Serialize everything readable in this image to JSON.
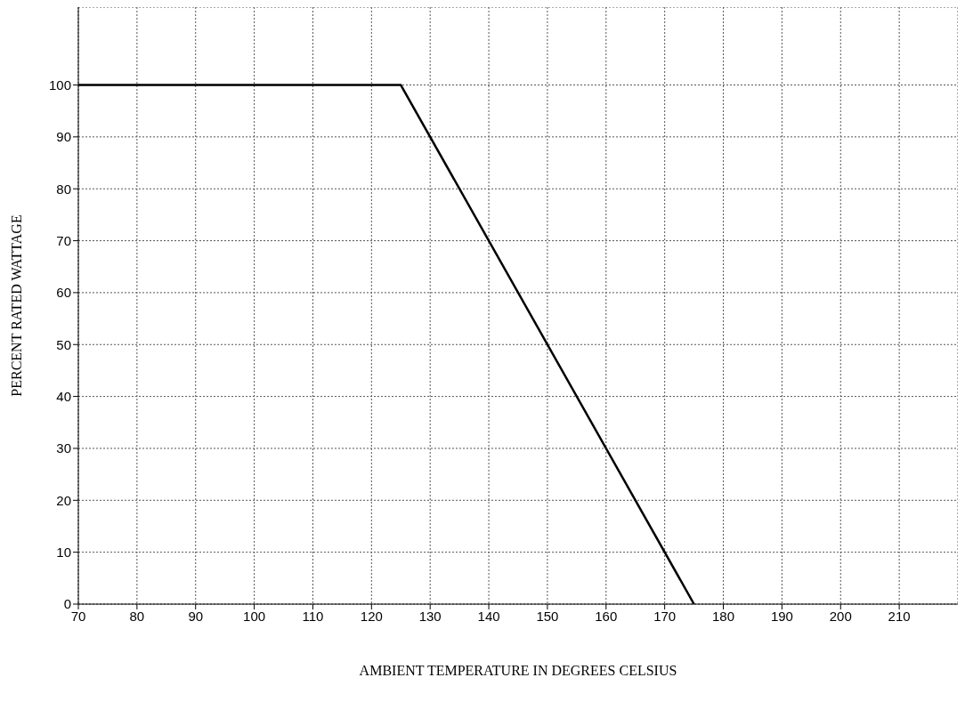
{
  "chart_data": {
    "type": "line",
    "xlabel": "AMBIENT TEMPERATURE IN DEGREES CELSIUS",
    "ylabel": "PERCENT RATED WATTAGE",
    "x": [
      70,
      125,
      175
    ],
    "series": [
      {
        "color": "#000000",
        "values": [
          100,
          100,
          0
        ]
      }
    ],
    "xlim": [
      70,
      220
    ],
    "xticks": [
      70,
      80,
      90,
      100,
      110,
      120,
      130,
      140,
      150,
      160,
      170,
      180,
      190,
      200,
      210
    ],
    "ylim": [
      0,
      115
    ],
    "yticks": [
      0,
      10,
      20,
      30,
      40,
      50,
      60,
      70,
      80,
      90,
      100
    ],
    "grid": true,
    "marker": "none",
    "line_style": "solid"
  }
}
